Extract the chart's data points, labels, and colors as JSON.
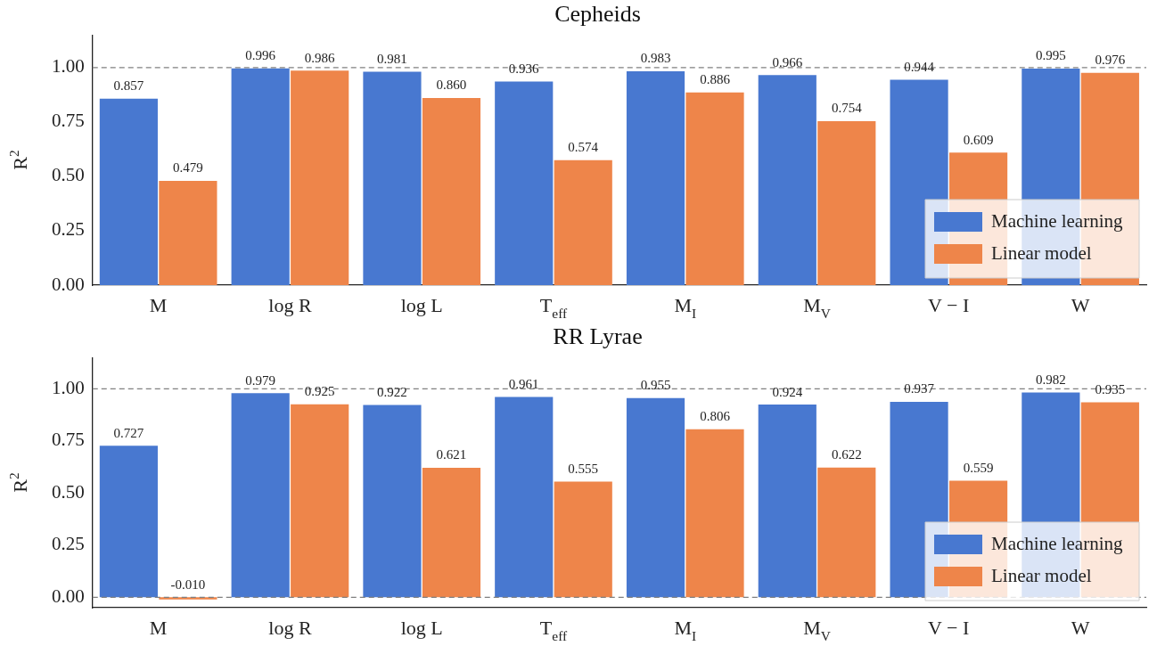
{
  "chart_data": [
    {
      "type": "bar",
      "title": "Cepheids",
      "ylabel": "R$^{2}$",
      "categories": [
        "M",
        "log R",
        "log L",
        "T$_{eff}$",
        "M$_{I}$",
        "M$_{V}$",
        "V − I",
        "W"
      ],
      "series": [
        {
          "name": "Machine learning",
          "color": "#4878d0",
          "values": [
            0.857,
            0.996,
            0.981,
            0.936,
            0.983,
            0.966,
            0.944,
            0.995
          ],
          "value_labels": [
            "0.857",
            "0.996",
            "0.981",
            "0.936",
            "0.983",
            "0.966",
            "0.944",
            "0.995"
          ]
        },
        {
          "name": "Linear model",
          "color": "#ee854a",
          "values": [
            0.479,
            0.986,
            0.86,
            0.574,
            0.886,
            0.754,
            0.609,
            0.976
          ],
          "value_labels": [
            "0.479",
            "0.986",
            "0.860",
            "0.574",
            "0.886",
            "0.754",
            "0.609",
            "0.976"
          ]
        }
      ],
      "ylim": [
        0,
        1.15
      ],
      "yticks": [
        {
          "value": 0,
          "label": "0.00"
        },
        {
          "value": 0.25,
          "label": "0.25"
        },
        {
          "value": 0.5,
          "label": "0.50"
        },
        {
          "value": 0.75,
          "label": "0.75"
        },
        {
          "value": 1,
          "label": "1.00"
        }
      ],
      "ref_lines": [
        {
          "axis": "y",
          "value": 1,
          "color": "#808080",
          "line_style": "dashed"
        }
      ],
      "legend": "bottom right"
    },
    {
      "type": "bar",
      "title": "RR Lyrae",
      "ylabel": "R$^{2}$",
      "categories": [
        "M",
        "log R",
        "log L",
        "T$_{eff}$",
        "M$_{I}$",
        "M$_{V}$",
        "V − I",
        "W"
      ],
      "series": [
        {
          "name": "Machine learning",
          "color": "#4878d0",
          "values": [
            0.727,
            0.979,
            0.922,
            0.961,
            0.955,
            0.924,
            0.937,
            0.982
          ],
          "value_labels": [
            "0.727",
            "0.979",
            "0.922",
            "0.961",
            "0.955",
            "0.924",
            "0.937",
            "0.982"
          ]
        },
        {
          "name": "Linear model",
          "color": "#ee854a",
          "values": [
            -0.01,
            0.925,
            0.621,
            0.555,
            0.806,
            0.622,
            0.559,
            0.935
          ],
          "value_labels": [
            "-0.010",
            "0.925",
            "0.621",
            "0.555",
            "0.806",
            "0.622",
            "0.559",
            "0.935"
          ]
        }
      ],
      "ylim": [
        -0.05,
        1.15
      ],
      "yticks": [
        {
          "value": 0,
          "label": "0.00"
        },
        {
          "value": 0.25,
          "label": "0.25"
        },
        {
          "value": 0.5,
          "label": "0.50"
        },
        {
          "value": 0.75,
          "label": "0.75"
        },
        {
          "value": 1,
          "label": "1.00"
        }
      ],
      "ref_lines": [
        {
          "axis": "y",
          "value": 1,
          "color": "#808080",
          "line_style": "dashed"
        },
        {
          "axis": "y",
          "value": 0,
          "color": "#808080",
          "line_style": "dashed"
        }
      ],
      "legend": "bottom right"
    }
  ]
}
